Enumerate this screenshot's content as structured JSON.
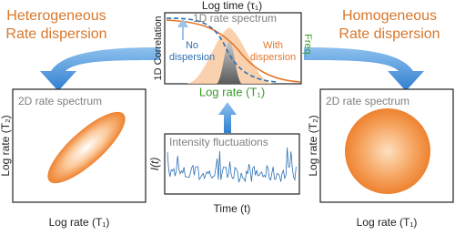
{
  "left_label": {
    "lines": [
      "Heterogeneous",
      "Rate dispersion"
    ]
  },
  "right_label": {
    "lines": [
      "Homogeneous",
      "Rate dispersion"
    ]
  },
  "correlation_panel": {
    "top_axis": "Log time (τ₁)",
    "title": "1D rate spectrum",
    "y_axis": "1D Correlation",
    "right_axis": "Freq.",
    "x_axis": "Log rate (T₁)",
    "no_dispersion": [
      "No",
      "dispersion"
    ],
    "with_dispersion": [
      "With",
      "dispersion"
    ]
  },
  "heterogeneous_panel": {
    "title": "2D rate spectrum",
    "y_axis": "Log rate (T₂)",
    "x_axis": "Log rate (T₁)"
  },
  "homogeneous_panel": {
    "title": "2D rate spectrum",
    "y_axis": "Log rate (T₂)",
    "x_axis": "Log rate (T₁)"
  },
  "intensity_panel": {
    "title": "Intensity fluctuations",
    "y_axis": "I(t)",
    "x_axis": "Time (t)"
  }
}
